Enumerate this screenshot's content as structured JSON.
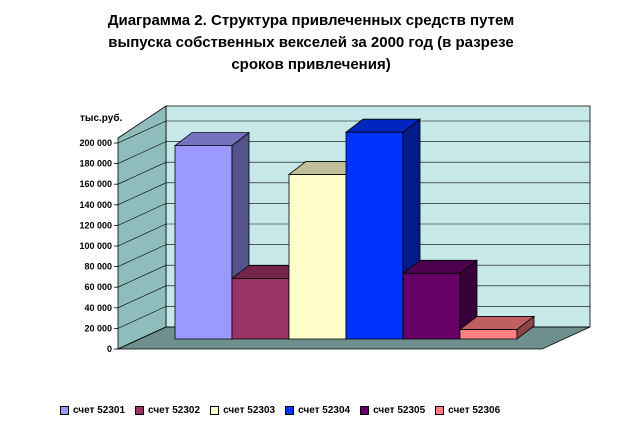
{
  "chart_data": {
    "type": "bar",
    "title": "Диаграмма 2. Структура  привлеченных средств путем\nвыпуска собственных векселей за 2000 год (в разрезе\nсроков привлечения)",
    "ylabel": "тыс.руб.",
    "ylim": [
      0,
      200000
    ],
    "yticks": [
      "0",
      "20 000",
      "40 000",
      "60 000",
      "80 000",
      "100 000",
      "120 000",
      "140 000",
      "160 000",
      "180 000",
      "200 000"
    ],
    "grid": true,
    "legend_position": "bottom",
    "series": [
      {
        "name": "счет 52301",
        "value": 180000,
        "color": "#9999ff"
      },
      {
        "name": "счет 52302",
        "value": 51000,
        "color": "#993366"
      },
      {
        "name": "счет 52303",
        "value": 152000,
        "color": "#ffffcc"
      },
      {
        "name": "счет 52304",
        "value": 193000,
        "color": "#0033ff"
      },
      {
        "name": "счет 52305",
        "value": 56000,
        "color": "#660066"
      },
      {
        "name": "счет 52306",
        "value": 1500,
        "color": "#ff8080"
      }
    ]
  }
}
